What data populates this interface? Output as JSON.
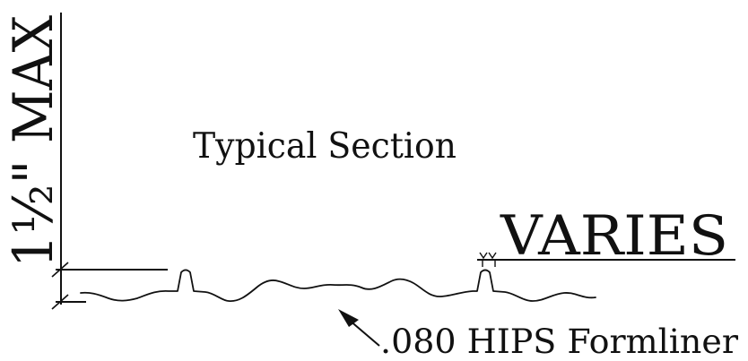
{
  "drawing": {
    "title": "Typical Section",
    "dimension_height": "1½\" MAX",
    "dimension_width": "VARIES",
    "material_callout": ".080 HIPS Formliner"
  },
  "colors": {
    "ink": "#111111",
    "background": "#ffffff"
  }
}
